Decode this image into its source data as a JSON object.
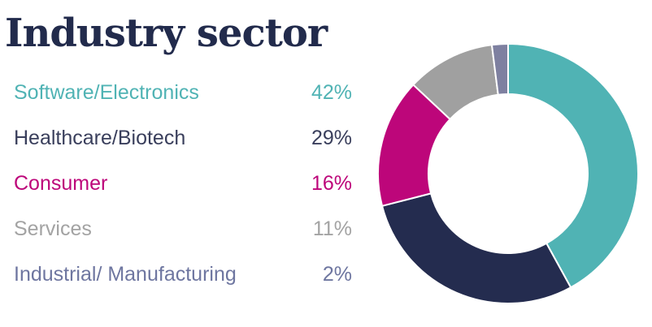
{
  "title": "Industry sector",
  "chart_data": {
    "type": "pie",
    "style": "donut",
    "title": "Industry sector",
    "categories": [
      "Software/Electronics",
      "Healthcare/Biotech",
      "Consumer",
      "Services",
      "Industrial/ Manufacturing"
    ],
    "values": [
      42,
      29,
      16,
      11,
      2
    ],
    "value_labels": [
      "42%",
      "29%",
      "16%",
      "11%",
      "2%"
    ],
    "colors": [
      "#50b3b4",
      "#242c4f",
      "#bd067a",
      "#a0a0a0",
      "#7e80a0"
    ],
    "label_colors": [
      "#50b3b4",
      "#3a3f5c",
      "#bd067a",
      "#a3a3a3",
      "#6e76a0"
    ],
    "legend_position": "left"
  }
}
